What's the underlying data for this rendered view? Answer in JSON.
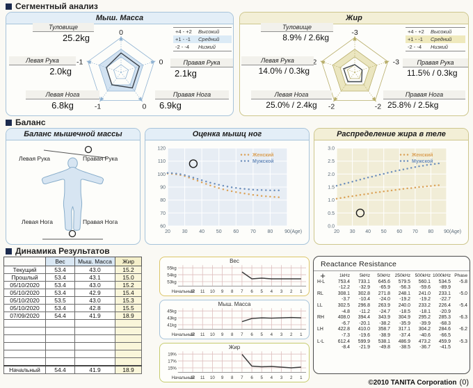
{
  "sections": {
    "segmental": "Сегментный анализ",
    "balance": "Баланс",
    "dynamics": "Динамика Результатов"
  },
  "radar_legend": {
    "rows": [
      {
        "range": "+4 - +2",
        "label": "Высокий"
      },
      {
        "range": "+1 - -1",
        "label": "Средний"
      },
      {
        "range": "-2 - -4",
        "label": "Низкий"
      }
    ],
    "highlight_row": 1
  },
  "balance_panel": {
    "title": "Баланс мышечной массы",
    "left_arm": "Левая Рука",
    "right_arm": "Правая Рука",
    "left_leg": "Левая Нога",
    "right_leg": "Правая Нога"
  },
  "footer": {
    "copyright": "©2010 TANITA Corporation",
    "page": "(0)"
  },
  "chart_data": [
    {
      "type": "radar",
      "theme": "blue",
      "title": "Мыш. Масса",
      "scale": {
        "min": -4,
        "max": 4,
        "normal_band": [
          -1,
          1
        ]
      },
      "segments": [
        {
          "label": "Туловище",
          "value": "25.2kg",
          "score": 0
        },
        {
          "label": "Правая Рука",
          "value": "2.1kg",
          "score": 0
        },
        {
          "label": "Правая Нога",
          "value": "6.9kg",
          "score": 0
        },
        {
          "label": "Левая Нога",
          "value": "6.8kg",
          "score": -1
        },
        {
          "label": "Левая Рука",
          "value": "2.0kg",
          "score": -1
        }
      ]
    },
    {
      "type": "radar",
      "theme": "yellow",
      "title": "Жир",
      "scale": {
        "min": -4,
        "max": 4,
        "normal_band": [
          -1,
          1
        ]
      },
      "segments": [
        {
          "label": "Туловище",
          "value": "8.9% / 2.6kg",
          "score": -3
        },
        {
          "label": "Правая Рука",
          "value": "11.5% / 0.3kg",
          "score": -3
        },
        {
          "label": "Правая Нога",
          "value": "25.8% / 2.5kg",
          "score": -2
        },
        {
          "label": "Левая Нога",
          "value": "25.0% / 2.4kg",
          "score": -2
        },
        {
          "label": "Левая Рука",
          "value": "14.0% / 0.3kg",
          "score": -2
        }
      ]
    },
    {
      "type": "scatter",
      "theme": "blue",
      "title": "Оценка мышц ног",
      "bg": "#e7edf4",
      "xlim": [
        20,
        90
      ],
      "xticks": [
        20,
        30,
        40,
        50,
        60,
        70,
        80,
        90
      ],
      "xlabel": "(Age)",
      "ylim": [
        60,
        120
      ],
      "yticks": [
        60,
        70,
        80,
        90,
        100,
        110,
        120
      ],
      "ytick_labels": [
        "60",
        "70",
        "80",
        "90",
        "100",
        "110",
        "120"
      ],
      "marker": {
        "x": 35,
        "y": 108
      },
      "series": [
        {
          "name": "Женский",
          "color": "#dba258",
          "x": [
            20,
            22.5,
            25,
            27.5,
            30,
            32.5,
            35,
            37.5,
            40,
            42.5,
            45,
            47.5,
            50,
            52.5,
            55,
            57.5,
            60,
            62.5,
            65,
            67.5,
            70,
            72.5,
            75,
            77.5,
            80,
            82.5,
            85
          ],
          "y": [
            100.4,
            100.2,
            99.8,
            99.2,
            98.4,
            97.3,
            96.1,
            94.9,
            93.6,
            92.4,
            91.2,
            90.2,
            89.2,
            88.3,
            87.5,
            86.8,
            86.1,
            85.5,
            85.0,
            84.5,
            84.0,
            83.6,
            83.2,
            82.9,
            82.6,
            82.4,
            82.2
          ]
        },
        {
          "name": "Мужской",
          "color": "#6d8fbc",
          "x": [
            20,
            22.5,
            25,
            27.5,
            30,
            32.5,
            35,
            37.5,
            40,
            42.5,
            45,
            47.5,
            50,
            52.5,
            55,
            57.5,
            60,
            62.5,
            65,
            67.5,
            70,
            72.5,
            75,
            77.5,
            80,
            82.5,
            85
          ],
          "y": [
            100.8,
            100.7,
            100.4,
            99.9,
            99.2,
            98.3,
            97.3,
            96.3,
            95.3,
            94.3,
            93.4,
            92.5,
            91.7,
            91.0,
            90.4,
            89.8,
            89.3,
            88.9,
            88.6,
            88.3,
            88.0,
            87.8,
            87.7,
            87.6,
            87.5,
            87.5,
            87.5
          ]
        }
      ]
    },
    {
      "type": "scatter",
      "theme": "yellow",
      "title": "Распределение жира в теле",
      "bg": "#f1edd7",
      "xlim": [
        20,
        90
      ],
      "xticks": [
        20,
        30,
        40,
        50,
        60,
        70,
        80,
        90
      ],
      "xlabel": "(Age)",
      "ylim": [
        0,
        3
      ],
      "yticks": [
        0,
        0.5,
        1,
        1.5,
        2,
        2.5,
        3
      ],
      "ytick_labels": [
        "0.0",
        "0.5",
        "1.0",
        "1.5",
        "2.0",
        "2.5",
        "3.0"
      ],
      "marker": {
        "x": 35,
        "y": 0.5
      },
      "series": [
        {
          "name": "Женский",
          "color": "#dba258",
          "x": [
            20,
            22.5,
            25,
            27.5,
            30,
            32.5,
            35,
            37.5,
            40,
            42.5,
            45,
            47.5,
            50,
            52.5,
            55,
            57.5,
            60,
            62.5,
            65,
            67.5,
            70,
            72.5,
            75,
            77.5,
            80,
            82.5,
            85
          ],
          "y": [
            1.05,
            1.08,
            1.1,
            1.13,
            1.15,
            1.17,
            1.2,
            1.22,
            1.24,
            1.27,
            1.29,
            1.31,
            1.33,
            1.35,
            1.37,
            1.39,
            1.41,
            1.43,
            1.45,
            1.46,
            1.48,
            1.5,
            1.51,
            1.53,
            1.54,
            1.56,
            1.57
          ]
        },
        {
          "name": "Мужской",
          "color": "#6d8fbc",
          "x": [
            20,
            22.5,
            25,
            27.5,
            30,
            32.5,
            35,
            37.5,
            40,
            42.5,
            45,
            47.5,
            50,
            52.5,
            55,
            57.5,
            60,
            62.5,
            65,
            67.5,
            70,
            72.5,
            75,
            77.5,
            80,
            82.5,
            85
          ],
          "y": [
            1.55,
            1.59,
            1.63,
            1.67,
            1.71,
            1.75,
            1.79,
            1.83,
            1.87,
            1.9,
            1.94,
            1.98,
            2.01,
            2.05,
            2.08,
            2.12,
            2.15,
            2.18,
            2.21,
            2.24,
            2.27,
            2.3,
            2.32,
            2.35,
            2.37,
            2.39,
            2.41
          ]
        }
      ]
    },
    {
      "type": "table",
      "variant": "history",
      "columns": [
        "",
        "Вес",
        "Мыш. Масса",
        "Жир"
      ],
      "rows": [
        [
          "Текущий",
          "53.4",
          "43.0",
          "15.2"
        ],
        [
          "Прошлый",
          "53.4",
          "43.1",
          "15.0"
        ],
        [
          "05/10/2020",
          "53.4",
          "43.0",
          "15.2"
        ],
        [
          "05/10/2020",
          "53.4",
          "42.9",
          "15.4"
        ],
        [
          "05/10/2020",
          "53.5",
          "43.0",
          "15.3"
        ],
        [
          "05/10/2020",
          "53.4",
          "42.8",
          "15.5"
        ],
        [
          "07/09/2020",
          "54.4",
          "41.9",
          "18.9"
        ],
        [
          "",
          "",
          "",
          ""
        ],
        [
          "",
          "",
          "",
          ""
        ],
        [
          "",
          "",
          "",
          ""
        ],
        [
          "",
          "",
          "",
          ""
        ],
        [
          "",
          "",
          "",
          ""
        ],
        [
          "",
          "",
          "",
          ""
        ],
        [
          "Начальный",
          "54.4",
          "41.9",
          "18.9"
        ]
      ]
    },
    {
      "type": "line",
      "theme": "weight",
      "title": "Вес",
      "y_labels": [
        "55kg",
        "54kg",
        "53kg"
      ],
      "grid_values": [
        55,
        54,
        53
      ],
      "x_labels": [
        "Начальный",
        "12",
        "11",
        "10",
        "9",
        "8",
        "7",
        "6",
        "5",
        "4",
        "3",
        "2",
        "1"
      ],
      "start_slot": 6,
      "values": [
        54.4,
        53.4,
        53.5,
        53.4,
        53.4,
        53.4,
        53.4
      ]
    },
    {
      "type": "line",
      "theme": "muscle",
      "title": "Мыш. Масса",
      "y_labels": [
        "45kg",
        "43kg",
        "41kg"
      ],
      "grid_values": [
        45,
        43,
        41
      ],
      "x_labels": [
        "Начальный",
        "12",
        "11",
        "10",
        "9",
        "8",
        "7",
        "6",
        "5",
        "4",
        "3",
        "2",
        "1"
      ],
      "start_slot": 6,
      "values": [
        41.9,
        42.8,
        43.0,
        42.9,
        43.0,
        43.1,
        43.0
      ]
    },
    {
      "type": "line",
      "theme": "fat",
      "title": "Жир",
      "y_labels": [
        "19%",
        "17%",
        "15%"
      ],
      "grid_values": [
        19,
        17,
        15
      ],
      "x_labels": [
        "Начальный",
        "12",
        "11",
        "10",
        "9",
        "8",
        "7",
        "6",
        "5",
        "4",
        "3",
        "2",
        "1"
      ],
      "start_slot": 6,
      "values": [
        18.9,
        15.5,
        15.3,
        15.4,
        15.2,
        15.0,
        15.2
      ]
    },
    {
      "type": "table",
      "variant": "reactance",
      "title": "Reactance Resistance",
      "columns": [
        "1kHz",
        "5kHz",
        "50kHz",
        "250kHz",
        "500kHz",
        "1000kHz",
        "Phase"
      ],
      "rows": [
        {
          "label": "H-L",
          "resistance": [
            753.4,
            733.1,
            645.6,
            579.5,
            560.1,
            534.5
          ],
          "reactance": [
            -12.2,
            -32.9,
            -65.9,
            -56.3,
            -59.6,
            -89.9
          ],
          "phase": -5.8
        },
        {
          "label": "RL",
          "resistance": [
            308.1,
            302.8,
            271.8,
            248.1,
            241.0,
            233.1
          ],
          "reactance": [
            -3.7,
            -10.4,
            -24.0,
            -19.2,
            -19.2,
            -22.7
          ],
          "phase": -5.0
        },
        {
          "label": "LL",
          "resistance": [
            302.5,
            296.8,
            263.9,
            240.0,
            233.2,
            226.4
          ],
          "reactance": [
            -4.8,
            -11.2,
            -24.7,
            -18.5,
            -18.1,
            -20.9
          ],
          "phase": -5.4
        },
        {
          "label": "RH",
          "resistance": [
            408.0,
            394.4,
            343.9,
            304.9,
            295.2,
            285.3
          ],
          "reactance": [
            -6.7,
            -20.1,
            -38.2,
            -35.9,
            -39.9,
            -68.3
          ],
          "phase": -6.3
        },
        {
          "label": "LH",
          "resistance": [
            422.8,
            410.0,
            358.7,
            317.1,
            304.2,
            284.6
          ],
          "reactance": [
            -7.3,
            -19.6,
            -38.9,
            -37.4,
            -40.6,
            -66.5
          ],
          "phase": -6.2
        },
        {
          "label": "L-L",
          "resistance": [
            612.4,
            599.9,
            538.1,
            486.9,
            473.2,
            459.9
          ],
          "reactance": [
            -8.4,
            -21.9,
            -49.8,
            -38.5,
            -36.7,
            -41.5
          ],
          "phase": -5.3
        }
      ]
    }
  ]
}
